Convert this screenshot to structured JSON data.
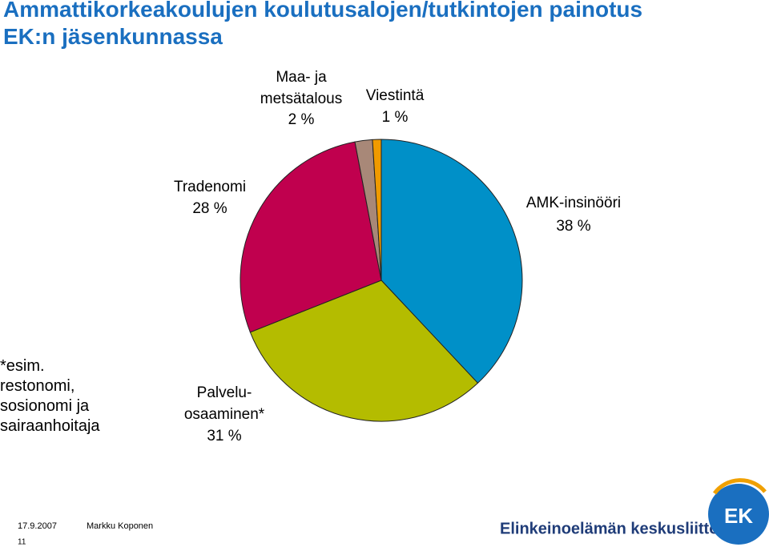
{
  "chart_data": {
    "type": "pie",
    "title": "Ammattikorkeakoulujen koulutusalojen/tutkintojen painotus\nEK:n jäsenkunnassa",
    "categories": [
      "AMK-insinööri",
      "Palvelu-\nosaaminen*",
      "Tradenomi",
      "Maa- ja\nmetsätalous",
      "Viestintä"
    ],
    "values": [
      38,
      31,
      28,
      2,
      1
    ],
    "value_labels": [
      "38 %",
      "31 %",
      "28 %",
      "2 %",
      "1 %"
    ],
    "colors": [
      "#0090c8",
      "#b4bc00",
      "#c0004e",
      "#a88878",
      "#f09a00"
    ],
    "note": "*esim.\nrestonomi,\nsosionomi ja\nsairaanhoitaja"
  },
  "footer": {
    "date": "17.9.2007",
    "author": "Markku Koponen",
    "page": "11",
    "logo_text": "Elinkeinoelämän keskusliitto",
    "logo_mark": "EK"
  }
}
